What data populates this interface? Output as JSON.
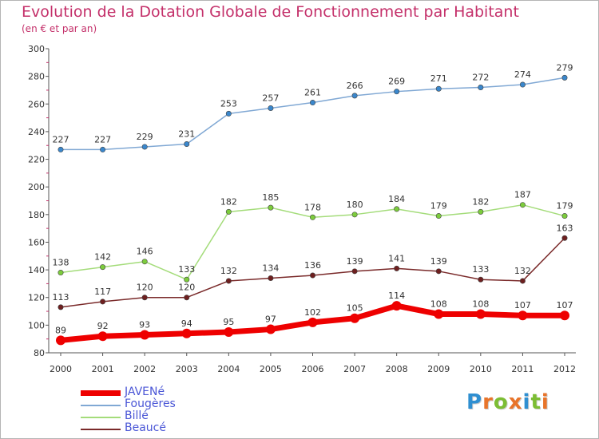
{
  "header": {
    "title": "Evolution de la Dotation Globale de Fonctionnement par Habitant",
    "subtitle": "(en € et par an)"
  },
  "logo": {
    "letters": [
      "P",
      "r",
      "o",
      "x",
      "i",
      "t",
      "i"
    ],
    "colors": [
      "#2f8fd1",
      "#e8742a",
      "#7cbd34",
      "#e8742a",
      "#2f8fd1",
      "#7cbd34",
      "#e8742a"
    ]
  },
  "colors": {
    "title": "#c4306a",
    "axis": "#555555",
    "tick_minor": "#c4306a",
    "legend_text": "#4a56d6"
  },
  "chart_data": {
    "type": "line",
    "title": "Evolution de la Dotation Globale de Fonctionnement par Habitant",
    "subtitle": "(en € et par an)",
    "x": [
      "2000",
      "2001",
      "2002",
      "2003",
      "2004",
      "2005",
      "2006",
      "2007",
      "2008",
      "2009",
      "2010",
      "2011",
      "2012"
    ],
    "ylim": [
      80,
      300
    ],
    "yticks": [
      80,
      100,
      120,
      140,
      160,
      180,
      200,
      220,
      240,
      260,
      280,
      300
    ],
    "grid": false,
    "legend_position": "bottom-left",
    "series": [
      {
        "name": "JAVENé",
        "color": "#ee0000",
        "marker": "#ee0000",
        "width": 7,
        "values": [
          89,
          92,
          93,
          94,
          95,
          97,
          102,
          105,
          114,
          108,
          108,
          107,
          107
        ]
      },
      {
        "name": "Fougères",
        "color": "#80a8d4",
        "marker": "#3a87cc",
        "width": 1.5,
        "values": [
          227,
          227,
          229,
          231,
          253,
          257,
          261,
          266,
          269,
          271,
          272,
          274,
          279
        ]
      },
      {
        "name": "Billé",
        "color": "#a4dc7a",
        "marker": "#7ccc3c",
        "width": 1.5,
        "values": [
          138,
          142,
          146,
          133,
          182,
          185,
          178,
          180,
          184,
          179,
          182,
          187,
          179
        ]
      },
      {
        "name": "Beaucé",
        "color": "#7a2a2a",
        "marker": "#6e1f1f",
        "width": 1.5,
        "values": [
          113,
          117,
          120,
          120,
          132,
          134,
          136,
          139,
          141,
          139,
          133,
          132,
          163
        ]
      }
    ]
  }
}
